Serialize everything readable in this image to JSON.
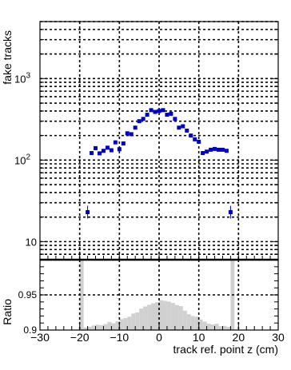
{
  "chart_data": [
    {
      "type": "scatter",
      "ylabel": "fake tracks",
      "yscale": "log",
      "ylim": [
        6,
        5000
      ],
      "xlim": [
        -30,
        30
      ],
      "grid": true,
      "ytick_labels": [
        {
          "value": 10,
          "base": "10",
          "exp": ""
        },
        {
          "value": 100,
          "base": "10",
          "exp": "2"
        },
        {
          "value": 1000,
          "base": "10",
          "exp": "3"
        }
      ],
      "marker_color": "#0000cc",
      "series": [
        {
          "x": [
            -18,
            -17,
            -16,
            -15,
            -14,
            -13,
            -12,
            -11,
            -10,
            -9,
            -8,
            -7,
            -6,
            -5,
            -4,
            -3,
            -2,
            -1,
            0,
            1,
            2,
            3,
            4,
            5,
            6,
            7,
            8,
            9,
            10,
            11,
            12,
            13,
            14,
            15,
            16,
            17,
            18
          ],
          "y": [
            23,
            122,
            140,
            121,
            130,
            142,
            132,
            165,
            136,
            160,
            213,
            208,
            250,
            300,
            320,
            360,
            410,
            390,
            400,
            410,
            360,
            370,
            320,
            250,
            260,
            230,
            200,
            180,
            168,
            122,
            127,
            134,
            137,
            134,
            134,
            130,
            23
          ]
        }
      ]
    },
    {
      "type": "bar",
      "ylabel": "Ratio",
      "xlabel": "track ref. point z (cm)",
      "xlim": [
        -30,
        30
      ],
      "ylim": [
        0.9,
        1.0
      ],
      "grid": true,
      "xtick_labels": [
        "−30",
        "−20",
        "−10",
        "0",
        "10",
        "20",
        "30"
      ],
      "ytick_labels": [
        "0.9",
        "0.95"
      ],
      "fill_color": "#d0d0d0",
      "bin_edges": [
        -20,
        -19,
        -18,
        -17,
        -16,
        -15,
        -14,
        -13,
        -12,
        -11,
        -10,
        -9,
        -8,
        -7,
        -6,
        -5,
        -4,
        -3,
        -2,
        -1,
        0,
        1,
        2,
        3,
        4,
        5,
        6,
        7,
        8,
        9,
        10,
        11,
        12,
        13,
        14,
        15,
        16,
        17,
        18,
        19
      ],
      "values": [
        1.0,
        0.9035,
        0.9045,
        0.9065,
        0.9075,
        0.907,
        0.9085,
        0.9115,
        0.9095,
        0.9125,
        0.9155,
        0.917,
        0.919,
        0.9235,
        0.925,
        0.9305,
        0.9335,
        0.936,
        0.938,
        0.9395,
        0.9425,
        0.9415,
        0.9405,
        0.9385,
        0.9355,
        0.934,
        0.9275,
        0.9225,
        0.92,
        0.919,
        0.915,
        0.912,
        0.909,
        0.908,
        0.909,
        0.9055,
        0.906,
        0.9045,
        1.0
      ]
    }
  ]
}
